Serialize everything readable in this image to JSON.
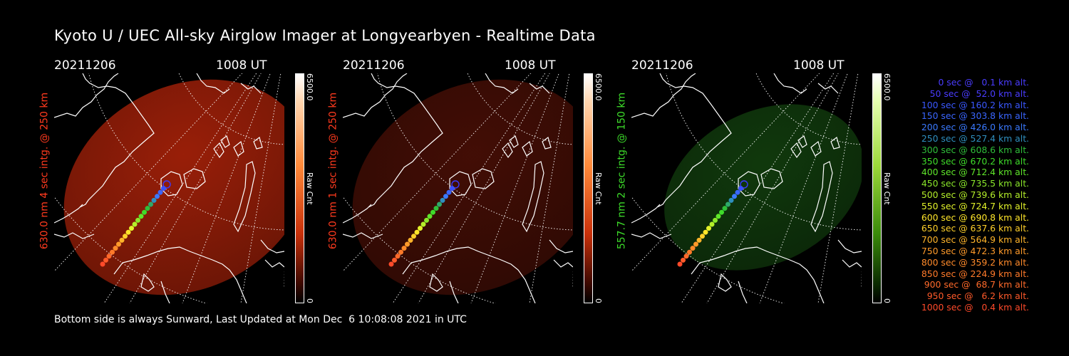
{
  "title": "Kyoto U / UEC All-sky Airglow Imager at Longyearbyen - Realtime Data",
  "footer": "Bottom side is always Sunward, Last Updated at Mon Dec  6 10:08:08 2021 in UTC",
  "panels": [
    {
      "date": "20211206",
      "time": "1008 UT",
      "ylabel": "630.0 nm 4 sec intg. @ 250 km",
      "label_color": "#ff3a1e",
      "glow_color": "#b4240a",
      "glow_opacity": 0.85,
      "colorbar_max": "6500.0",
      "colorbar_min": "0",
      "colorbar_unit": "Raw Cnt"
    },
    {
      "date": "20211206",
      "time": "1008 UT",
      "ylabel": "630.0 nm 1 sec intg. @ 250 km",
      "label_color": "#ff3a1e",
      "glow_color": "#4a0f06",
      "glow_opacity": 0.9,
      "colorbar_max": "6500.0",
      "colorbar_min": "0",
      "colorbar_unit": "Raw Cnt"
    },
    {
      "date": "20211206",
      "time": "1008 UT",
      "ylabel": "557.7 nm 2 sec intg. @ 150 km",
      "label_color": "#3ddc2a",
      "glow_color": "#123f0e",
      "glow_opacity": 0.9,
      "colorbar_max": "6500.0",
      "colorbar_min": "0",
      "colorbar_unit": "Raw Cnt"
    }
  ],
  "legend": [
    {
      "text": "0 sec @   0.1 km alt.",
      "color": "#4a3cff"
    },
    {
      "text": "50 sec @  52.0 km alt.",
      "color": "#4a3cff"
    },
    {
      "text": "100 sec @ 160.2 km alt.",
      "color": "#3a58ff"
    },
    {
      "text": "150 sec @ 303.8 km alt.",
      "color": "#3a66ff"
    },
    {
      "text": "200 sec @ 426.0 km alt.",
      "color": "#3a7aff"
    },
    {
      "text": "250 sec @ 527.4 km alt.",
      "color": "#2f8fbf"
    },
    {
      "text": "300 sec @ 608.6 km alt.",
      "color": "#2fbf3a"
    },
    {
      "text": "350 sec @ 670.2 km alt.",
      "color": "#3fdc2a"
    },
    {
      "text": "400 sec @ 712.4 km alt.",
      "color": "#5fe62a"
    },
    {
      "text": "450 sec @ 735.5 km alt.",
      "color": "#8ae62a"
    },
    {
      "text": "500 sec @ 739.6 km alt.",
      "color": "#b4ef2a"
    },
    {
      "text": "550 sec @ 724.7 km alt.",
      "color": "#e2f22a"
    },
    {
      "text": "600 sec @ 690.8 km alt.",
      "color": "#ffe62a"
    },
    {
      "text": "650 sec @ 637.6 km alt.",
      "color": "#ffd02a"
    },
    {
      "text": "700 sec @ 564.9 km alt.",
      "color": "#ffb42a"
    },
    {
      "text": "750 sec @ 472.3 km alt.",
      "color": "#ff9a2a"
    },
    {
      "text": "800 sec @ 359.2 km alt.",
      "color": "#ff8a2a"
    },
    {
      "text": "850 sec @ 224.9 km alt.",
      "color": "#ff7a2a"
    },
    {
      "text": "900 sec @  68.7 km alt.",
      "color": "#ff6a2a"
    },
    {
      "text": "950 sec @   6.2 km alt.",
      "color": "#ff5a2a"
    },
    {
      "text": "1000 sec @   0.4 km alt.",
      "color": "#ff4a2a"
    }
  ]
}
